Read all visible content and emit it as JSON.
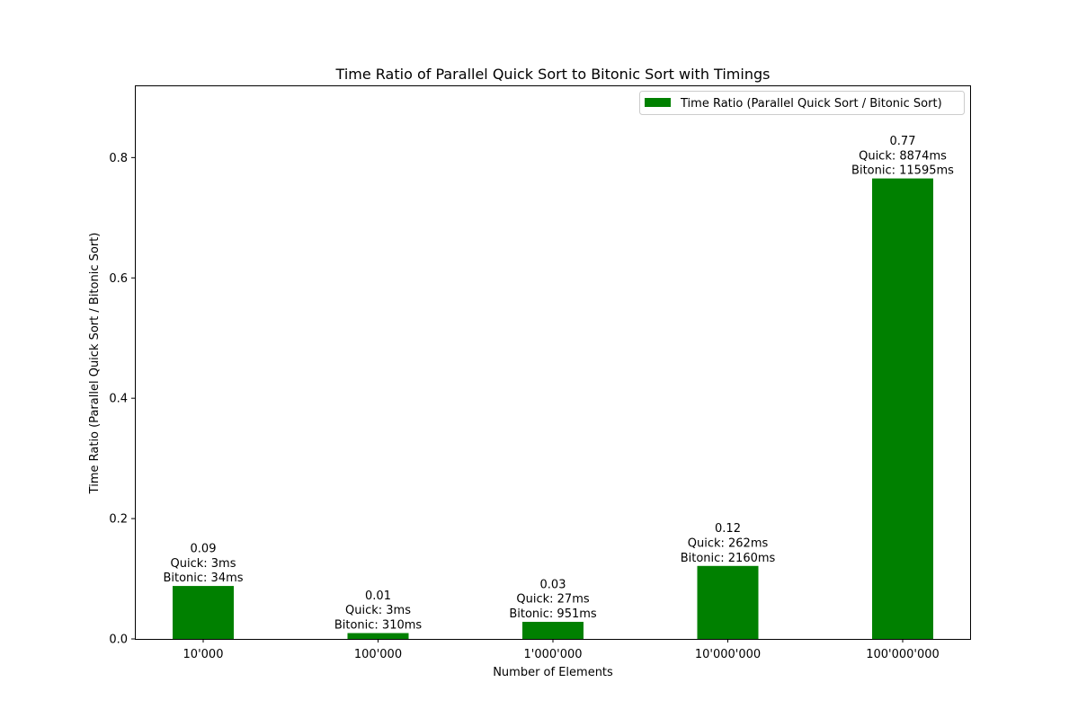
{
  "chart_data": {
    "type": "bar",
    "title": "Time Ratio of Parallel Quick Sort to Bitonic Sort with Timings",
    "xlabel": "Number of Elements",
    "ylabel": "Time Ratio (Parallel Quick Sort / Bitonic Sort)",
    "categories": [
      "10'000",
      "100'000",
      "1'000'000",
      "10'000'000",
      "100'000'000"
    ],
    "values": [
      0.088,
      0.0097,
      0.0284,
      0.1213,
      0.7653
    ],
    "ylim": [
      0,
      0.92
    ],
    "yticks": [
      "0.0",
      "0.2",
      "0.4",
      "0.6",
      "0.8"
    ],
    "legend": {
      "label": "Time Ratio (Parallel Quick Sort / Bitonic Sort)",
      "position": "top-right"
    },
    "grid": false,
    "bar_color": "#008000",
    "annotations": [
      [
        "0.09",
        "Quick: 3ms",
        "Bitonic: 34ms"
      ],
      [
        "0.01",
        "Quick: 3ms",
        "Bitonic: 310ms"
      ],
      [
        "0.03",
        "Quick: 27ms",
        "Bitonic: 951ms"
      ],
      [
        "0.12",
        "Quick: 262ms",
        "Bitonic: 2160ms"
      ],
      [
        "0.77",
        "Quick: 8874ms",
        "Bitonic: 11595ms"
      ]
    ]
  }
}
